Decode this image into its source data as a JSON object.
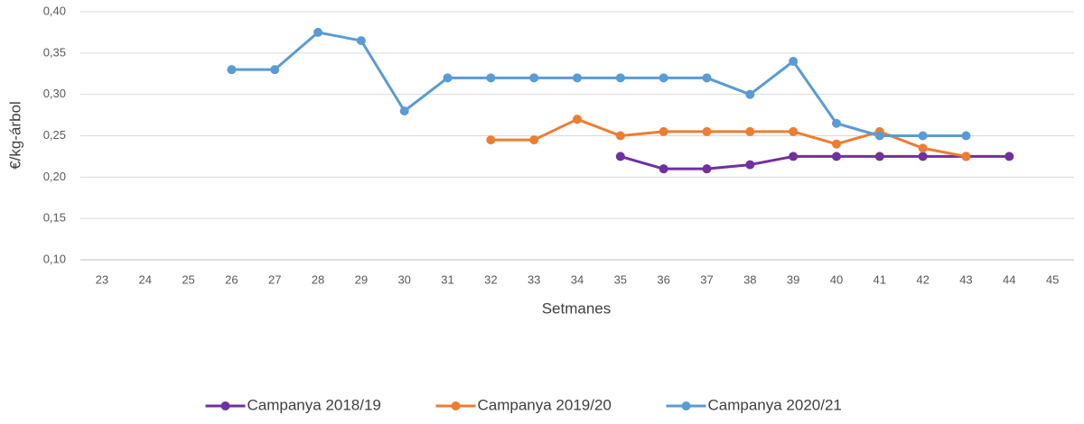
{
  "chart_data": {
    "type": "line",
    "x_label": "Setmanes",
    "y_label": "€/kg-árbol",
    "categories": [
      "23",
      "24",
      "25",
      "26",
      "27",
      "28",
      "29",
      "30",
      "31",
      "32",
      "33",
      "34",
      "35",
      "36",
      "37",
      "38",
      "39",
      "40",
      "41",
      "42",
      "43",
      "44",
      "45"
    ],
    "series": [
      {
        "name": "Campanya 2018/19",
        "color": "#7030a0",
        "values": [
          null,
          null,
          null,
          null,
          null,
          null,
          null,
          null,
          null,
          null,
          null,
          null,
          0.225,
          0.21,
          0.21,
          0.215,
          0.225,
          0.225,
          0.225,
          0.225,
          0.225,
          0.225,
          null
        ]
      },
      {
        "name": "Campanya 2019/20",
        "color": "#ed7d31",
        "values": [
          null,
          null,
          null,
          null,
          null,
          null,
          null,
          null,
          null,
          0.245,
          0.245,
          0.27,
          0.25,
          0.255,
          0.255,
          0.255,
          0.255,
          0.24,
          0.255,
          0.235,
          0.225,
          null,
          null
        ]
      },
      {
        "name": "Campanya 2020/21",
        "color": "#5b9bd5",
        "values": [
          null,
          null,
          null,
          0.33,
          0.33,
          0.375,
          0.365,
          0.28,
          0.32,
          0.32,
          0.32,
          0.32,
          0.32,
          0.32,
          0.32,
          0.3,
          0.34,
          0.265,
          0.25,
          0.25,
          0.25,
          null,
          null
        ]
      }
    ],
    "ylim": [
      0.1,
      0.4
    ],
    "yticks": [
      {
        "value": 0.1,
        "label": "0,10"
      },
      {
        "value": 0.15,
        "label": "0,15"
      },
      {
        "value": 0.2,
        "label": "0,20"
      },
      {
        "value": 0.25,
        "label": "0,25"
      },
      {
        "value": 0.3,
        "label": "0,30"
      },
      {
        "value": 0.35,
        "label": "0,35"
      },
      {
        "value": 0.4,
        "label": "0,40"
      }
    ],
    "grid": true,
    "legend": "bottom"
  }
}
